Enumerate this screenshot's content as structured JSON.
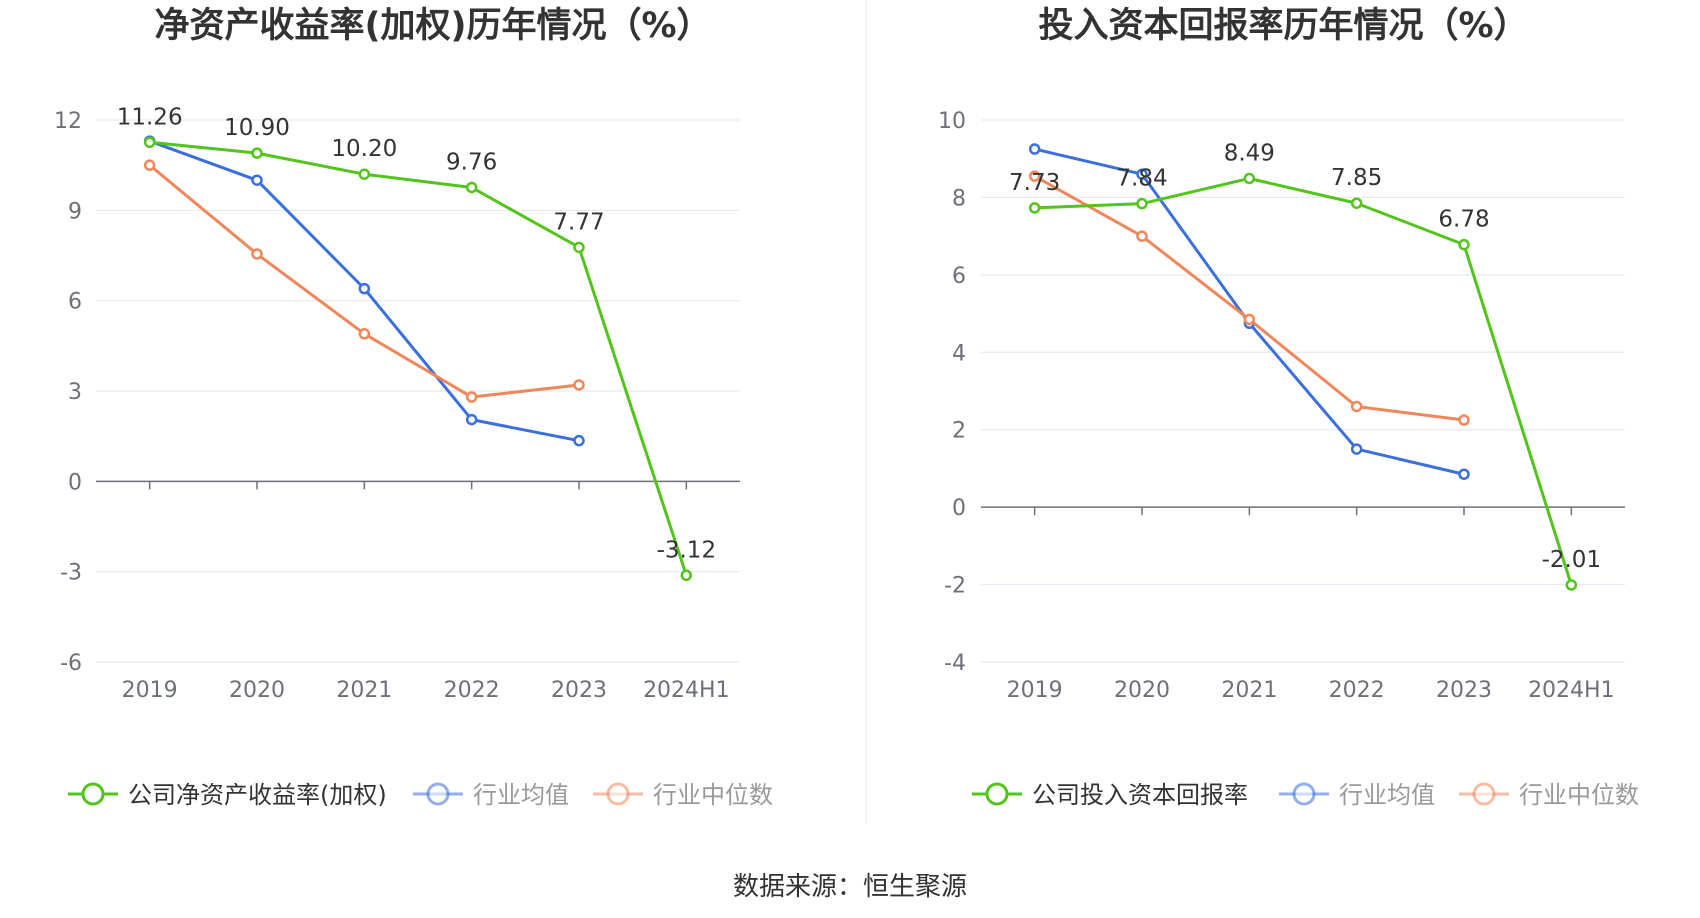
{
  "source_label": "数据来源：恒生聚源",
  "colors": {
    "company": "#52c41a",
    "industry_mean": "#3a6fde",
    "industry_median": "#f0875a"
  },
  "chart_data": [
    {
      "type": "line",
      "title": "净资产收益率(加权)历年情况（%）",
      "categories": [
        "2019",
        "2020",
        "2021",
        "2022",
        "2023",
        "2024H1"
      ],
      "ylim": [
        -6,
        12
      ],
      "yticks": [
        -6,
        -3,
        0,
        3,
        6,
        9,
        12
      ],
      "legend_position": "bottom",
      "grid": true,
      "series": [
        {
          "name": "公司净资产收益率(加权)",
          "key": "company",
          "values": [
            11.26,
            10.9,
            10.2,
            9.76,
            7.77,
            -3.12
          ],
          "labels": [
            "11.26",
            "10.90",
            "10.20",
            "9.76",
            "7.77",
            "-3.12"
          ]
        },
        {
          "name": "行业均值",
          "key": "industry_mean",
          "values": [
            11.3,
            10.0,
            6.4,
            2.05,
            1.35,
            null
          ]
        },
        {
          "name": "行业中位数",
          "key": "industry_median",
          "values": [
            10.5,
            7.55,
            4.9,
            2.8,
            3.2,
            null
          ]
        }
      ]
    },
    {
      "type": "line",
      "title": "投入资本回报率历年情况（%）",
      "categories": [
        "2019",
        "2020",
        "2021",
        "2022",
        "2023",
        "2024H1"
      ],
      "ylim": [
        -4,
        10
      ],
      "yticks": [
        -4,
        -2,
        0,
        2,
        4,
        6,
        8,
        10
      ],
      "legend_position": "bottom",
      "grid": true,
      "series": [
        {
          "name": "公司投入资本回报率",
          "key": "company",
          "values": [
            7.73,
            7.84,
            8.49,
            7.85,
            6.78,
            -2.01
          ],
          "labels": [
            "7.73",
            "7.84",
            "8.49",
            "7.85",
            "6.78",
            "-2.01"
          ]
        },
        {
          "name": "行业均值",
          "key": "industry_mean",
          "values": [
            9.25,
            8.6,
            4.75,
            1.5,
            0.85,
            null
          ]
        },
        {
          "name": "行业中位数",
          "key": "industry_median",
          "values": [
            8.55,
            7.0,
            4.85,
            2.6,
            2.25,
            null
          ]
        }
      ]
    }
  ]
}
